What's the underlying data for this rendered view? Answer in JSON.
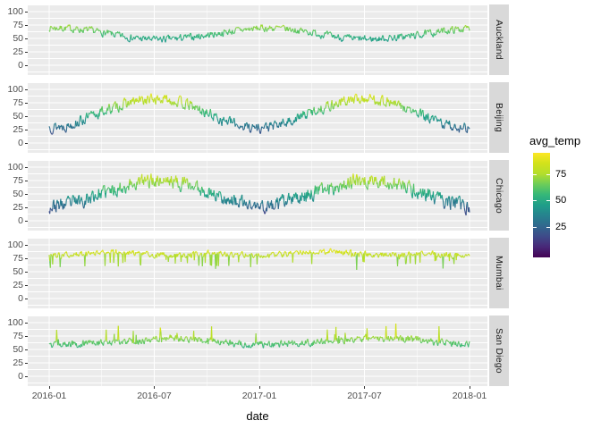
{
  "figure": {
    "x_axis_title": "date",
    "y_axis_title": "",
    "title": ""
  },
  "colors": {
    "panel_background": "#EBEBEB",
    "strip_background": "#D9D9D9",
    "gridline": "#FFFFFF",
    "tick_mark": "#333333",
    "axis_text": "#4D4D4D",
    "strip_text": "#1A1A1A",
    "title_text": "#000000"
  },
  "chart_data": {
    "type": "line",
    "title": "",
    "xlabel": "date",
    "ylabel": "",
    "faceting": {
      "variable": "city",
      "strip_side": "right",
      "facets": [
        "Auckland",
        "Beijing",
        "Chicago",
        "Mumbai",
        "San Diego"
      ]
    },
    "x_ticks": [
      "2016-01",
      "2016-07",
      "2017-01",
      "2017-07",
      "2018-01"
    ],
    "x_range": [
      "2016-01-01",
      "2018-01-01"
    ],
    "y_ticks": [
      100,
      75,
      50,
      25,
      0
    ],
    "y_minor_ticks": [
      112.5,
      87.5,
      62.5,
      37.5,
      12.5,
      -12.5
    ],
    "ylim_per_panel": [
      -18,
      113
    ],
    "grid": true,
    "points_per_series": 731,
    "legend": {
      "title": "avg_temp",
      "tick_labels": [
        75,
        50,
        25
      ],
      "position": "right",
      "palette": "viridis",
      "domain": [
        -4,
        96
      ]
    },
    "viridis_stops": [
      "#440154",
      "#482878",
      "#3E4A89",
      "#31688E",
      "#26828E",
      "#1F9E89",
      "#35B779",
      "#6DCD59",
      "#B4DE2C",
      "#D2E21B",
      "#FDE725"
    ],
    "series_note": "Daily avg_temp lines colored by value (viridis). Values are estimated monthly means read off the chart; daily values oscillate around them with the listed noise amplitude.",
    "series": [
      {
        "name": "Auckland",
        "monthly_means": [
          70,
          69,
          66,
          61,
          55,
          50,
          48,
          49,
          52,
          56,
          61,
          66,
          69,
          69,
          66,
          61,
          55,
          50,
          48,
          50,
          52,
          56,
          61,
          66,
          69
        ],
        "noise_amp": 6,
        "seed": 7
      },
      {
        "name": "Beijing",
        "monthly_means": [
          30,
          32,
          44,
          58,
          69,
          78,
          82,
          80,
          70,
          56,
          42,
          32,
          28,
          32,
          44,
          58,
          70,
          79,
          83,
          80,
          69,
          55,
          41,
          31,
          28
        ],
        "noise_amp": 9,
        "seed": 13
      },
      {
        "name": "Chicago",
        "monthly_means": [
          27,
          30,
          40,
          51,
          61,
          71,
          76,
          74,
          67,
          55,
          43,
          32,
          25,
          30,
          40,
          52,
          61,
          71,
          75,
          73,
          66,
          55,
          43,
          33,
          24
        ],
        "noise_amp": 12,
        "seed": 23
      },
      {
        "name": "Mumbai",
        "monthly_means": [
          80,
          81,
          84,
          87,
          88,
          85,
          82,
          81,
          81,
          84,
          83,
          81,
          79,
          81,
          84,
          87,
          88,
          85,
          82,
          81,
          81,
          84,
          83,
          80,
          79
        ],
        "noise_amp": 5,
        "dip_prob": 0.08,
        "dip_min": 6,
        "dip_max": 24,
        "seed": 31
      },
      {
        "name": "San Diego",
        "monthly_means": [
          60,
          60,
          61,
          63,
          64,
          66,
          69,
          71,
          70,
          67,
          63,
          60,
          59,
          60,
          61,
          63,
          65,
          68,
          70,
          71,
          70,
          67,
          63,
          61,
          60
        ],
        "noise_amp": 6,
        "spike_prob": 0.025,
        "spike_min": 8,
        "spike_max": 26,
        "seed": 47
      }
    ]
  }
}
